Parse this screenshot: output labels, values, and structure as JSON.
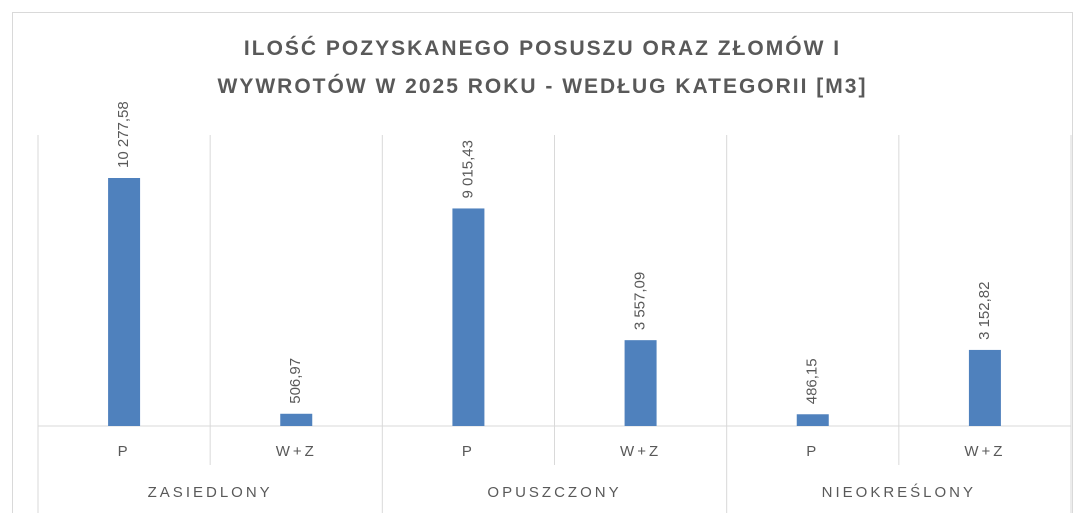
{
  "chart_data": {
    "type": "bar",
    "title": "ILOŚĆ POZYSKANEGO POSUSZU ORAZ ZŁOMÓW I\nWYWROTÓW W 2025 ROKU - WEDŁUG KATEGORII [M3]",
    "groups": [
      "ZASIEDLONY",
      "OPUSZCZONY",
      "NIEOKREŚLONY"
    ],
    "categories": [
      "P",
      "W+Z",
      "P",
      "W+Z",
      "P",
      "W+Z"
    ],
    "values": [
      10277.58,
      506.97,
      9015.43,
      3557.09,
      486.15,
      3152.82
    ],
    "value_labels": [
      "10 277,58",
      "506,97",
      "9 015,43",
      "3 557,09",
      "486,15",
      "3 152,82"
    ],
    "color": "#4f81bd"
  }
}
